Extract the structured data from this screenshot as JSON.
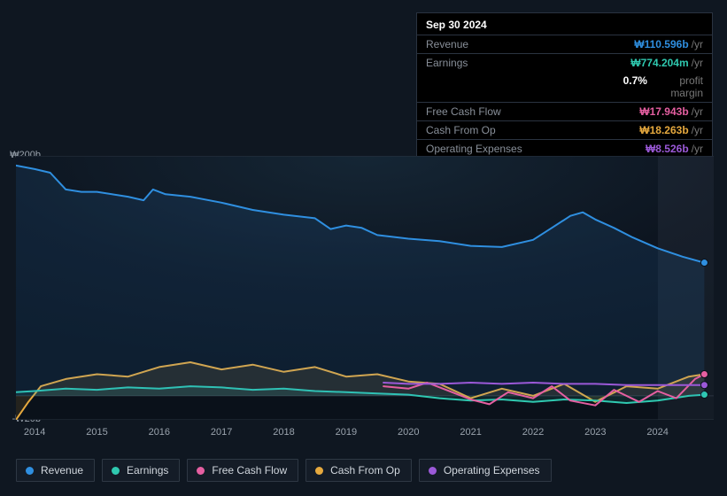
{
  "colors": {
    "revenue": "#2f8fe0",
    "earnings": "#2fc9b0",
    "fcf": "#e55fa1",
    "cfo": "#e6a93e",
    "opex": "#9b59d8",
    "bg": "#0f1721",
    "grid": "#2a3340",
    "text_muted": "#888f99"
  },
  "tooltip": {
    "date": "Sep 30 2024",
    "rows": [
      {
        "label": "Revenue",
        "amount": "₩110.596b",
        "unit": "/yr",
        "color": "#2f8fe0"
      },
      {
        "label": "Earnings",
        "amount": "₩774.204m",
        "unit": "/yr",
        "color": "#2fc9b0"
      }
    ],
    "subrow": {
      "amount": "0.7%",
      "unit": "profit margin"
    },
    "rows2": [
      {
        "label": "Free Cash Flow",
        "amount": "₩17.943b",
        "unit": "/yr",
        "color": "#e55fa1"
      },
      {
        "label": "Cash From Op",
        "amount": "₩18.263b",
        "unit": "/yr",
        "color": "#e6a93e"
      },
      {
        "label": "Operating Expenses",
        "amount": "₩8.526b",
        "unit": "/yr",
        "color": "#9b59d8"
      }
    ]
  },
  "chart": {
    "type": "line",
    "y_axis": {
      "ticks": [
        {
          "label": "₩200b",
          "value": 200
        },
        {
          "label": "₩0",
          "value": 0
        },
        {
          "label": "-₩20b",
          "value": -20
        }
      ],
      "min": -20,
      "max": 200
    },
    "x_axis": {
      "labels": [
        "2014",
        "2015",
        "2016",
        "2017",
        "2018",
        "2019",
        "2020",
        "2021",
        "2022",
        "2023",
        "2024"
      ],
      "min": 2013.7,
      "max": 2024.9,
      "future_start": 2024.0
    },
    "series": {
      "revenue": [
        [
          2013.7,
          192
        ],
        [
          2014.0,
          189
        ],
        [
          2014.25,
          186
        ],
        [
          2014.5,
          172
        ],
        [
          2014.75,
          170
        ],
        [
          2015.0,
          170
        ],
        [
          2015.5,
          166
        ],
        [
          2015.75,
          163
        ],
        [
          2015.9,
          172
        ],
        [
          2016.1,
          168
        ],
        [
          2016.5,
          166
        ],
        [
          2017.0,
          161
        ],
        [
          2017.5,
          155
        ],
        [
          2018.0,
          151
        ],
        [
          2018.5,
          148
        ],
        [
          2018.75,
          139
        ],
        [
          2019.0,
          142
        ],
        [
          2019.25,
          140
        ],
        [
          2019.5,
          134
        ],
        [
          2020.0,
          131
        ],
        [
          2020.5,
          129
        ],
        [
          2021.0,
          125
        ],
        [
          2021.5,
          124
        ],
        [
          2022.0,
          130
        ],
        [
          2022.3,
          140
        ],
        [
          2022.6,
          150
        ],
        [
          2022.8,
          153
        ],
        [
          2023.0,
          147
        ],
        [
          2023.3,
          140
        ],
        [
          2023.6,
          132
        ],
        [
          2024.0,
          123
        ],
        [
          2024.4,
          116
        ],
        [
          2024.75,
          111
        ]
      ],
      "earnings": [
        [
          2013.7,
          3
        ],
        [
          2014.0,
          4
        ],
        [
          2014.5,
          6
        ],
        [
          2015.0,
          5
        ],
        [
          2015.5,
          7
        ],
        [
          2016.0,
          6
        ],
        [
          2016.5,
          8
        ],
        [
          2017.0,
          7
        ],
        [
          2017.5,
          5
        ],
        [
          2018.0,
          6
        ],
        [
          2018.5,
          4
        ],
        [
          2019.0,
          3
        ],
        [
          2019.5,
          2
        ],
        [
          2020.0,
          1
        ],
        [
          2020.5,
          -2
        ],
        [
          2021.0,
          -4
        ],
        [
          2021.5,
          -3
        ],
        [
          2022.0,
          -5
        ],
        [
          2022.5,
          -3
        ],
        [
          2023.0,
          -4
        ],
        [
          2023.5,
          -6
        ],
        [
          2024.0,
          -4
        ],
        [
          2024.5,
          0
        ],
        [
          2024.75,
          1
        ]
      ],
      "fcf": [
        [
          2019.6,
          8
        ],
        [
          2020.0,
          6
        ],
        [
          2020.3,
          11
        ],
        [
          2020.6,
          5
        ],
        [
          2021.0,
          -3
        ],
        [
          2021.3,
          -7
        ],
        [
          2021.6,
          3
        ],
        [
          2022.0,
          -2
        ],
        [
          2022.3,
          8
        ],
        [
          2022.6,
          -4
        ],
        [
          2023.0,
          -8
        ],
        [
          2023.3,
          5
        ],
        [
          2023.7,
          -5
        ],
        [
          2024.0,
          4
        ],
        [
          2024.3,
          -2
        ],
        [
          2024.6,
          14
        ],
        [
          2024.75,
          18
        ]
      ],
      "cfo": [
        [
          2013.7,
          -20
        ],
        [
          2013.9,
          -5
        ],
        [
          2014.1,
          8
        ],
        [
          2014.5,
          14
        ],
        [
          2015.0,
          18
        ],
        [
          2015.5,
          16
        ],
        [
          2016.0,
          24
        ],
        [
          2016.5,
          28
        ],
        [
          2017.0,
          22
        ],
        [
          2017.5,
          26
        ],
        [
          2018.0,
          20
        ],
        [
          2018.5,
          24
        ],
        [
          2019.0,
          16
        ],
        [
          2019.5,
          18
        ],
        [
          2020.0,
          12
        ],
        [
          2020.5,
          10
        ],
        [
          2021.0,
          -2
        ],
        [
          2021.5,
          6
        ],
        [
          2022.0,
          0
        ],
        [
          2022.5,
          10
        ],
        [
          2023.0,
          -5
        ],
        [
          2023.5,
          8
        ],
        [
          2024.0,
          6
        ],
        [
          2024.5,
          16
        ],
        [
          2024.75,
          18
        ]
      ],
      "opex": [
        [
          2019.6,
          11
        ],
        [
          2020.0,
          10
        ],
        [
          2020.5,
          10
        ],
        [
          2021.0,
          11
        ],
        [
          2021.5,
          10
        ],
        [
          2022.0,
          11
        ],
        [
          2022.5,
          10
        ],
        [
          2023.0,
          10
        ],
        [
          2023.5,
          9
        ],
        [
          2024.0,
          9
        ],
        [
          2024.5,
          9
        ],
        [
          2024.75,
          9
        ]
      ]
    },
    "line_width": 2,
    "end_dot_radius": 4
  },
  "legend": [
    {
      "label": "Revenue",
      "colorKey": "revenue"
    },
    {
      "label": "Earnings",
      "colorKey": "earnings"
    },
    {
      "label": "Free Cash Flow",
      "colorKey": "fcf"
    },
    {
      "label": "Cash From Op",
      "colorKey": "cfo"
    },
    {
      "label": "Operating Expenses",
      "colorKey": "opex"
    }
  ]
}
